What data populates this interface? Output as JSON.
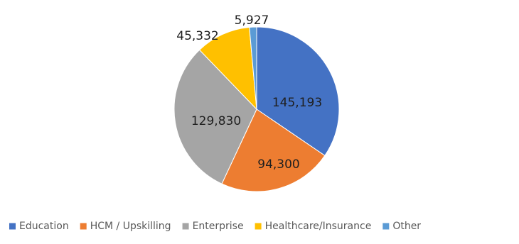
{
  "chart_data": {
    "type": "pie",
    "title": "",
    "slices": [
      {
        "label": "Education",
        "value": 145193,
        "value_label": "145,193",
        "color": "#4472C4"
      },
      {
        "label": "HCM / Upskilling",
        "value": 94300,
        "value_label": "94,300",
        "color": "#ED7D31"
      },
      {
        "label": "Enterprise",
        "value": 129830,
        "value_label": "129,830",
        "color": "#A5A5A5"
      },
      {
        "label": "Healthcare/Insurance",
        "value": 45332,
        "value_label": "45,332",
        "color": "#FFC000"
      },
      {
        "label": "Other",
        "value": 5927,
        "value_label": "5,927",
        "color": "#5B9BD5"
      }
    ],
    "start_angle": "12 o'clock",
    "direction": "clockwise",
    "legend_position": "bottom"
  }
}
